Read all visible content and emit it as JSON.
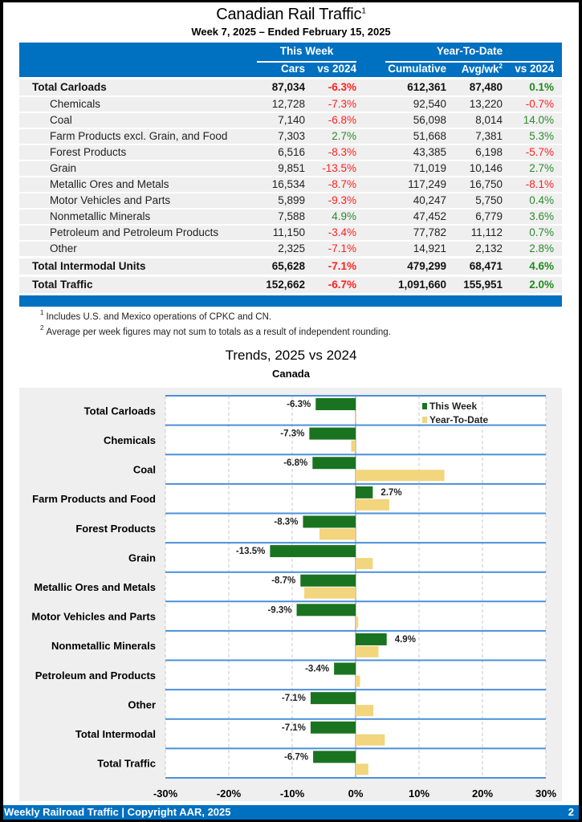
{
  "header": {
    "title": "Canadian Rail Traffic",
    "title_footnote": "1",
    "subtitle": "Week 7, 2025 – Ended February 15, 2025"
  },
  "table": {
    "group_this_week": "This Week",
    "group_ytd": "Year-To-Date",
    "columns": {
      "cars": "Cars",
      "vs2024_week": "vs 2024",
      "cumulative": "Cumulative",
      "avgwk": "Avg/wk",
      "avgwk_footnote": "2",
      "vs2024_ytd": "vs 2024"
    },
    "rows": [
      {
        "label": "Total Carloads",
        "bold": true,
        "cars": "87,034",
        "wk": "-6.3%",
        "cum": "612,361",
        "avg": "87,480",
        "ytd": "0.1%"
      },
      {
        "label": "Chemicals",
        "bold": false,
        "cars": "12,728",
        "wk": "-7.3%",
        "cum": "92,540",
        "avg": "13,220",
        "ytd": "-0.7%"
      },
      {
        "label": "Coal",
        "bold": false,
        "cars": "7,140",
        "wk": "-6.8%",
        "cum": "56,098",
        "avg": "8,014",
        "ytd": "14.0%"
      },
      {
        "label": "Farm Products excl. Grain, and Food",
        "bold": false,
        "cars": "7,303",
        "wk": "2.7%",
        "cum": "51,668",
        "avg": "7,381",
        "ytd": "5.3%"
      },
      {
        "label": "Forest Products",
        "bold": false,
        "cars": "6,516",
        "wk": "-8.3%",
        "cum": "43,385",
        "avg": "6,198",
        "ytd": "-5.7%"
      },
      {
        "label": "Grain",
        "bold": false,
        "cars": "9,851",
        "wk": "-13.5%",
        "cum": "71,019",
        "avg": "10,146",
        "ytd": "2.7%"
      },
      {
        "label": "Metallic Ores and Metals",
        "bold": false,
        "cars": "16,534",
        "wk": "-8.7%",
        "cum": "117,249",
        "avg": "16,750",
        "ytd": "-8.1%"
      },
      {
        "label": "Motor Vehicles and Parts",
        "bold": false,
        "cars": "5,899",
        "wk": "-9.3%",
        "cum": "40,247",
        "avg": "5,750",
        "ytd": "0.4%"
      },
      {
        "label": "Nonmetallic Minerals",
        "bold": false,
        "cars": "7,588",
        "wk": "4.9%",
        "cum": "47,452",
        "avg": "6,779",
        "ytd": "3.6%"
      },
      {
        "label": "Petroleum and Petroleum Products",
        "bold": false,
        "cars": "11,150",
        "wk": "-3.4%",
        "cum": "77,782",
        "avg": "11,112",
        "ytd": "0.7%"
      },
      {
        "label": "Other",
        "bold": false,
        "cars": "2,325",
        "wk": "-7.1%",
        "cum": "14,921",
        "avg": "2,132",
        "ytd": "2.8%"
      },
      {
        "label": "Total Intermodal Units",
        "bold": true,
        "cars": "65,628",
        "wk": "-7.1%",
        "cum": "479,299",
        "avg": "68,471",
        "ytd": "4.6%"
      },
      {
        "label": "Total Traffic",
        "bold": true,
        "cars": "152,662",
        "wk": "-6.7%",
        "cum": "1,091,660",
        "avg": "155,951",
        "ytd": "2.0%"
      }
    ]
  },
  "notes": [
    {
      "mark": "1",
      "text": "Includes U.S. and Mexico operations of CPKC and CN."
    },
    {
      "mark": "2",
      "text": "Average per week figures may not sum to totals as a result of independent rounding."
    }
  ],
  "colors": {
    "brand_blue": "#0070c0",
    "negative": "#ff2020",
    "positive": "#2d8a2d",
    "this_week_bar": "#1a7320",
    "ytd_bar": "#f2d57c",
    "row_separator": "#4a90d9"
  },
  "chart_data": {
    "type": "bar",
    "orientation": "horizontal",
    "title": "Trends, 2025 vs 2024",
    "subtitle": "Canada",
    "xlabel": "",
    "ylabel": "",
    "xlim": [
      -30,
      30
    ],
    "xticks": [
      -30,
      -20,
      -10,
      0,
      10,
      20,
      30
    ],
    "xtick_labels": [
      "-30%",
      "-20%",
      "-10%",
      "0%",
      "10%",
      "20%",
      "30%"
    ],
    "grid": true,
    "legend_position": "top-right",
    "categories": [
      "Total Carloads",
      "Chemicals",
      "Coal",
      "Farm Products and Food",
      "Forest Products",
      "Grain",
      "Metallic Ores and Metals",
      "Motor Vehicles and Parts",
      "Nonmetallic Minerals",
      "Petroleum and Products",
      "Other",
      "Total Intermodal",
      "Total Traffic"
    ],
    "series": [
      {
        "name": "This Week",
        "values": [
          -6.3,
          -7.3,
          -6.8,
          2.7,
          -8.3,
          -13.5,
          -8.7,
          -9.3,
          4.9,
          -3.4,
          -7.1,
          -7.1,
          -6.7
        ],
        "labels": [
          "-6.3%",
          "-7.3%",
          "-6.8%",
          "2.7%",
          "-8.3%",
          "-13.5%",
          "-8.7%",
          "-9.3%",
          "4.9%",
          "-3.4%",
          "-7.1%",
          "-7.1%",
          "-6.7%"
        ]
      },
      {
        "name": "Year-To-Date",
        "values": [
          0.1,
          -0.7,
          14.0,
          5.3,
          -5.7,
          2.7,
          -8.1,
          0.4,
          3.6,
          0.7,
          2.8,
          4.6,
          2.0
        ]
      }
    ]
  },
  "footer": {
    "left": "Weekly Railroad Traffic | Copyright AAR, 2025",
    "page_number": "2"
  }
}
